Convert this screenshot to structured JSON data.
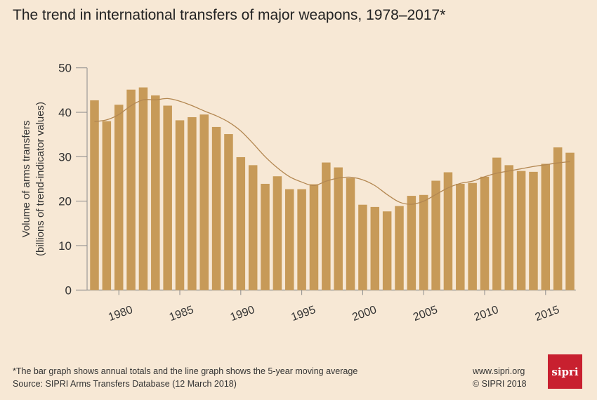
{
  "chart_data": {
    "type": "bar",
    "title": "The trend in international transfers of major weapons, 1978–2017*",
    "ylabel": "Volume of arms transfers",
    "ylabel2": "(billions of trend-indicator values)",
    "xlabel": "",
    "ylim": [
      0,
      50
    ],
    "yticks": [
      0,
      10,
      20,
      30,
      40,
      50
    ],
    "xtick_labels": [
      "1980",
      "1985",
      "1990",
      "1995",
      "2000",
      "2005",
      "2010",
      "2015"
    ],
    "categories": [
      1978,
      1979,
      1980,
      1981,
      1982,
      1983,
      1984,
      1985,
      1986,
      1987,
      1988,
      1989,
      1990,
      1991,
      1992,
      1993,
      1994,
      1995,
      1996,
      1997,
      1998,
      1999,
      2000,
      2001,
      2002,
      2003,
      2004,
      2005,
      2006,
      2007,
      2008,
      2009,
      2010,
      2011,
      2012,
      2013,
      2014,
      2015,
      2016,
      2017
    ],
    "series": [
      {
        "name": "Annual total",
        "type": "bar",
        "color": "#c79a58",
        "values": [
          42.7,
          38.0,
          41.7,
          45.1,
          45.6,
          43.8,
          41.5,
          38.2,
          38.9,
          39.5,
          36.7,
          35.1,
          29.9,
          28.1,
          23.9,
          25.6,
          22.7,
          22.7,
          23.8,
          28.7,
          27.6,
          25.2,
          19.2,
          18.7,
          17.7,
          18.9,
          21.2,
          21.4,
          24.6,
          26.5,
          23.9,
          24.1,
          25.5,
          29.8,
          28.1,
          26.8,
          26.6,
          28.4,
          32.1,
          30.9
        ]
      },
      {
        "name": "5-year moving average",
        "type": "line",
        "color": "#b38751",
        "values": [
          37.9,
          38.3,
          39.5,
          41.5,
          42.8,
          42.8,
          43.1,
          42.5,
          41.5,
          40.3,
          39.2,
          37.8,
          35.8,
          33.0,
          30.0,
          27.5,
          25.5,
          24.3,
          23.5,
          24.5,
          25.2,
          25.4,
          24.8,
          23.5,
          21.5,
          19.8,
          19.3,
          20.0,
          21.5,
          23.0,
          24.0,
          24.5,
          25.5,
          26.3,
          26.8,
          27.3,
          27.8,
          28.2,
          28.6,
          28.9
        ]
      }
    ],
    "grid": false
  },
  "footer": {
    "note": "*The bar graph shows annual totals and the line graph shows the 5-year moving average",
    "source": "Source: SIPRI Arms Transfers Database (12 March 2018)",
    "url": "www.sipri.org",
    "copyright": "© SIPRI 2018",
    "logo": "sipri"
  }
}
